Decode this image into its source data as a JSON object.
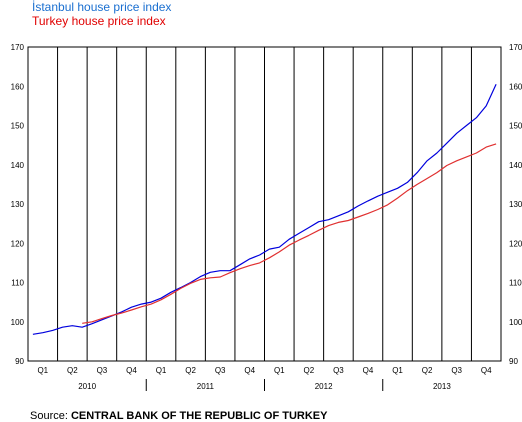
{
  "chart_data": {
    "type": "line",
    "ylim": [
      90,
      170
    ],
    "yticks": [
      90,
      100,
      110,
      120,
      130,
      140,
      150,
      160,
      170
    ],
    "quarters": [
      "Q1",
      "Q2",
      "Q3",
      "Q4",
      "Q1",
      "Q2",
      "Q3",
      "Q4",
      "Q1",
      "Q2",
      "Q3",
      "Q4",
      "Q1",
      "Q2",
      "Q3",
      "Q4"
    ],
    "years": [
      "2010",
      "2011",
      "2012",
      "2013"
    ],
    "x_months": [
      0,
      1,
      2,
      3,
      4,
      5,
      6,
      7,
      8,
      9,
      10,
      11,
      12,
      13,
      14,
      15,
      16,
      17,
      18,
      19,
      20,
      21,
      22,
      23,
      24,
      25,
      26,
      27,
      28,
      29,
      30,
      31,
      32,
      33,
      34,
      35,
      36,
      37,
      38,
      39,
      40,
      41,
      42,
      43,
      44,
      45,
      46,
      47
    ],
    "series": [
      {
        "name": "İstanbul house price index",
        "color": "#0000dd",
        "values": [
          96.8,
          97.2,
          97.8,
          98.6,
          99.0,
          98.6,
          99.5,
          100.5,
          101.5,
          102.5,
          103.7,
          104.5,
          105.0,
          106.0,
          107.5,
          108.7,
          110.0,
          111.5,
          112.6,
          113.0,
          113.0,
          114.5,
          116.0,
          117.0,
          118.5,
          119.0,
          121.0,
          122.5,
          124.0,
          125.5,
          126.0,
          127.0,
          128.0,
          129.5,
          130.8,
          132.0,
          133.0,
          134.0,
          135.5,
          138.0,
          141.0,
          143.0,
          145.5,
          148.0,
          150.0,
          152.0,
          155.0,
          160.5
        ]
      },
      {
        "name": "Turkey house price index",
        "color": "#e03030",
        "values": [
          null,
          null,
          null,
          null,
          null,
          99.6,
          100.0,
          100.8,
          101.6,
          102.2,
          103.0,
          103.8,
          104.5,
          105.6,
          107.0,
          108.5,
          109.8,
          110.8,
          111.2,
          111.4,
          112.5,
          113.5,
          114.3,
          115.0,
          116.3,
          117.8,
          119.5,
          120.8,
          122.0,
          123.3,
          124.5,
          125.3,
          125.8,
          126.7,
          127.6,
          128.6,
          129.8,
          131.5,
          133.4,
          135.0,
          136.5,
          138.0,
          139.8,
          141.0,
          142.0,
          143.0,
          144.5,
          145.3
        ]
      }
    ]
  },
  "legend": {
    "istanbul": "İstanbul house price index",
    "turkey": "Turkey house price index"
  },
  "source": {
    "prefix": "Source:",
    "text": "CENTRAL BANK OF THE REPUBLIC OF TURKEY"
  }
}
